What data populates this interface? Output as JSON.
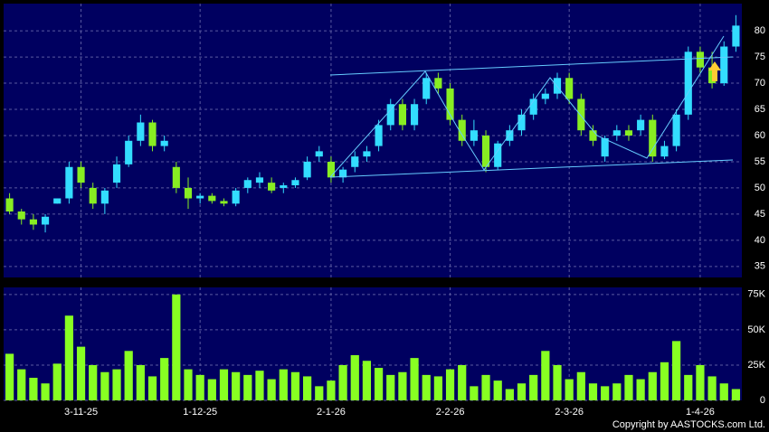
{
  "chart_data": [
    {
      "type": "candlestick",
      "up_color": "#33ddff",
      "down_color": "#88ee22",
      "grid": true,
      "open": [
        48,
        45.5,
        44,
        43,
        47,
        48,
        54,
        50,
        47,
        51,
        54.5,
        59,
        62.5,
        58,
        54,
        50,
        48,
        48.5,
        47.5,
        47,
        50,
        51,
        51,
        50,
        50.5,
        52,
        56,
        55,
        52,
        54,
        56,
        58,
        62,
        66,
        62,
        67,
        71,
        69,
        63,
        59,
        60,
        54,
        59,
        61,
        64,
        67,
        68,
        71,
        67,
        61,
        56,
        60,
        61,
        61,
        63,
        56,
        58,
        64,
        76,
        73,
        70,
        77
      ],
      "high": [
        49,
        46,
        45,
        45,
        48,
        55,
        55,
        51,
        50,
        56,
        60,
        64,
        63,
        60,
        55,
        52,
        49,
        49,
        48,
        50,
        52,
        53,
        52,
        51,
        52,
        56,
        58,
        56,
        54,
        57,
        58,
        63,
        67,
        67,
        67,
        72,
        72,
        70,
        64,
        63,
        61,
        59,
        62,
        65,
        68,
        69,
        72,
        72,
        68,
        62,
        60,
        62,
        62,
        64,
        64,
        59,
        65,
        77,
        77,
        76,
        78,
        83
      ],
      "low": [
        45,
        43,
        42,
        41.5,
        47,
        47,
        50,
        46,
        45,
        50,
        54,
        58,
        57,
        57,
        49,
        46,
        47,
        47,
        46.5,
        46.5,
        49,
        50,
        49,
        49,
        50,
        51.5,
        55,
        51,
        51,
        53,
        55,
        57,
        61,
        61,
        61,
        66,
        68,
        62,
        58,
        58,
        53,
        53.5,
        58,
        60,
        63,
        66,
        67,
        66,
        60,
        58,
        55,
        59,
        59,
        60,
        55,
        55.5,
        57,
        63,
        72,
        69,
        69.5,
        76
      ],
      "close": [
        45.5,
        44,
        43,
        44.5,
        48,
        54,
        51,
        47,
        49.5,
        54.5,
        59,
        62.5,
        58,
        59,
        50,
        48,
        48.5,
        47.5,
        47,
        49.5,
        51.5,
        52,
        49.5,
        50.5,
        51.5,
        55,
        57,
        52,
        53.5,
        56,
        57,
        62,
        66,
        62,
        66,
        71,
        69,
        63,
        59,
        61,
        54,
        58.5,
        61,
        64,
        67,
        68,
        71,
        67,
        61,
        59,
        59.5,
        61,
        60,
        63,
        56,
        58,
        64,
        76,
        73,
        70,
        77,
        81
      ],
      "ylim": [
        32.9,
        85.2
      ],
      "yticks": [
        35,
        40,
        45,
        50,
        55,
        60,
        65,
        70,
        75,
        80
      ]
    },
    {
      "type": "bar",
      "color": "#88ff22",
      "grid": true,
      "categories": [
        null,
        null,
        null,
        null,
        null,
        null,
        "3-11-25",
        null,
        null,
        null,
        null,
        null,
        null,
        null,
        null,
        null,
        "1-12-25",
        null,
        null,
        null,
        null,
        null,
        null,
        null,
        null,
        null,
        null,
        "2-1-26",
        null,
        null,
        null,
        null,
        null,
        null,
        null,
        null,
        null,
        "2-2-26",
        null,
        null,
        null,
        null,
        null,
        null,
        null,
        null,
        null,
        "2-3-26",
        null,
        null,
        null,
        null,
        null,
        null,
        null,
        null,
        null,
        null,
        "1-4-26",
        null,
        null,
        null
      ],
      "values": [
        33000,
        22000,
        16000,
        12000,
        26000,
        60000,
        38000,
        25000,
        20000,
        22000,
        35000,
        25000,
        17000,
        30000,
        75000,
        22000,
        18000,
        15000,
        22000,
        20000,
        18000,
        21000,
        15000,
        22000,
        20000,
        17000,
        10000,
        14000,
        25000,
        32000,
        28000,
        23000,
        18000,
        20000,
        30000,
        18000,
        17000,
        22000,
        25000,
        10000,
        18000,
        14000,
        8000,
        12000,
        18000,
        35000,
        25000,
        15000,
        20000,
        12000,
        10000,
        12000,
        18000,
        15000,
        20000,
        27000,
        42000,
        18000,
        25000,
        17000,
        12000,
        8000
      ],
      "ylim": [
        0,
        80000
      ],
      "yticks": [
        0,
        {
          "value": 25000,
          "label": "25K"
        },
        {
          "value": 50000,
          "label": "50K"
        },
        {
          "value": 75000,
          "label": "75K"
        }
      ]
    },
    {
      "copyright": "Copyright by AASTOCKS.com Ltd."
    }
  ]
}
